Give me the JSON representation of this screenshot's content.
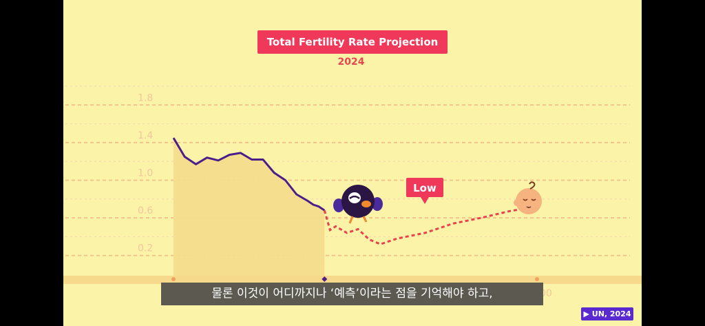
{
  "chart_data": {
    "type": "line",
    "title": "Total Fertility Rate Projection",
    "subtitle": "2024",
    "y_ticks": [
      "0.2",
      "0.6",
      "1.0",
      "1.4",
      "1.8"
    ],
    "ylim": [
      0,
      2.0
    ],
    "x_tick_labels": [
      "2100"
    ],
    "grid": true,
    "series": [
      {
        "style": "solid",
        "color": "#4b1f8a",
        "x": [
          1970,
          1974,
          1978,
          1982,
          1986,
          1990,
          1994,
          1998,
          2002,
          2006,
          2010,
          2014,
          2018,
          2020,
          2022,
          2024
        ],
        "y": [
          1.45,
          1.25,
          1.17,
          1.24,
          1.21,
          1.27,
          1.29,
          1.22,
          1.22,
          1.08,
          1.0,
          0.85,
          0.78,
          0.74,
          0.72,
          0.68
        ]
      },
      {
        "style": "dashed",
        "label": "Low",
        "color": "#e8424f",
        "x": [
          2024,
          2026,
          2028,
          2032,
          2036,
          2040,
          2044,
          2050,
          2060,
          2070,
          2080,
          2090,
          2100
        ],
        "y": [
          0.68,
          0.47,
          0.51,
          0.44,
          0.48,
          0.37,
          0.32,
          0.38,
          0.44,
          0.54,
          0.6,
          0.67,
          0.72
        ]
      }
    ]
  },
  "annotation_label": "Low",
  "caption": "물론 이것이 어디까지나 ‘예측’이라는 점을 기억해야 하고,",
  "source_badge": "▶ UN, 2024",
  "colors": {
    "background": "#fbf3a8",
    "accent": "#f0395a",
    "historical_line": "#4b1f8a",
    "projection_line": "#e8424f",
    "shade": "#f6dc8d",
    "baseline": "#f6d98b"
  },
  "icons": [
    "bird-character-icon",
    "baby-face-icon"
  ]
}
